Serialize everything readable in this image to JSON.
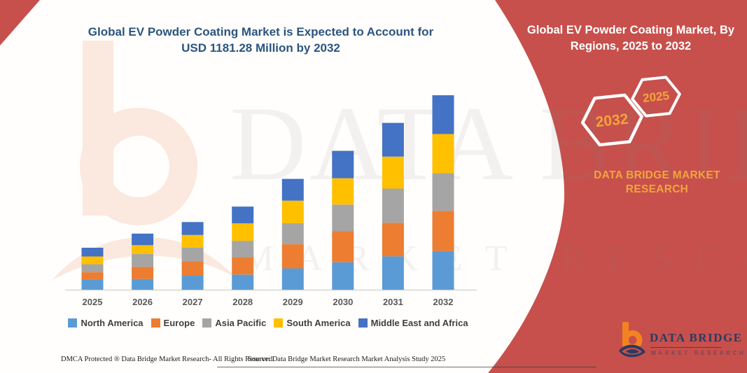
{
  "title": {
    "line1": "Global EV Powder Coating Market is Expected to Account for",
    "line2": "USD 1181.28 Million by 2032"
  },
  "panel": {
    "title": "Global EV Powder Coating Market, By Regions, 2025 to 2032",
    "hexagons": [
      {
        "label": "2032"
      },
      {
        "label": "2025"
      }
    ],
    "brand_text": "DATA BRIDGE MARKET RESEARCH",
    "red_color": "#C7504C",
    "accent_orange": "#F2A43C"
  },
  "watermark": {
    "line1": "DATA BRIDGE",
    "line2": "MARKET RESEARCH"
  },
  "logo": {
    "name": "DATA BRIDGE",
    "sub": "MARKET RESEARCH"
  },
  "footer": {
    "left": "DMCA Protected ® Data Bridge Market Research-  All Rights Reserved.",
    "right": "Source: Data Bridge Market Research  Market Analysis Study 2025"
  },
  "chart_data": {
    "type": "bar",
    "stacked": true,
    "title": "Global EV Powder Coating Market is Expected to Account for USD 1181.28 Million by 2032",
    "unit": "USD Million",
    "categories": [
      "2025",
      "2026",
      "2027",
      "2028",
      "2029",
      "2030",
      "2031",
      "2032"
    ],
    "series": [
      {
        "name": "North America",
        "color": "#5B9BD5",
        "values": [
          61,
          65,
          85,
          92,
          130,
          167,
          203,
          235
        ]
      },
      {
        "name": "Europe",
        "color": "#ED7D31",
        "values": [
          45,
          74,
          85,
          106,
          146,
          188,
          203,
          244
        ]
      },
      {
        "name": "Asia Pacific",
        "color": "#A5A5A5",
        "values": [
          49,
          78,
          85,
          99,
          128,
          162,
          208,
          229
        ]
      },
      {
        "name": "South America",
        "color": "#FFC000",
        "values": [
          47,
          54,
          78,
          106,
          137,
          160,
          194,
          238
        ]
      },
      {
        "name": "Middle East and Africa",
        "color": "#4472C4",
        "values": [
          53,
          70,
          78,
          102,
          132,
          166,
          205,
          235.28
        ]
      }
    ],
    "totals": [
      255,
      341,
      411,
      505,
      673,
      843,
      1013,
      1181.28
    ],
    "ylim": [
      0,
      1200
    ],
    "grid": false,
    "axis_labels_shown": false,
    "legend_position": "bottom"
  }
}
